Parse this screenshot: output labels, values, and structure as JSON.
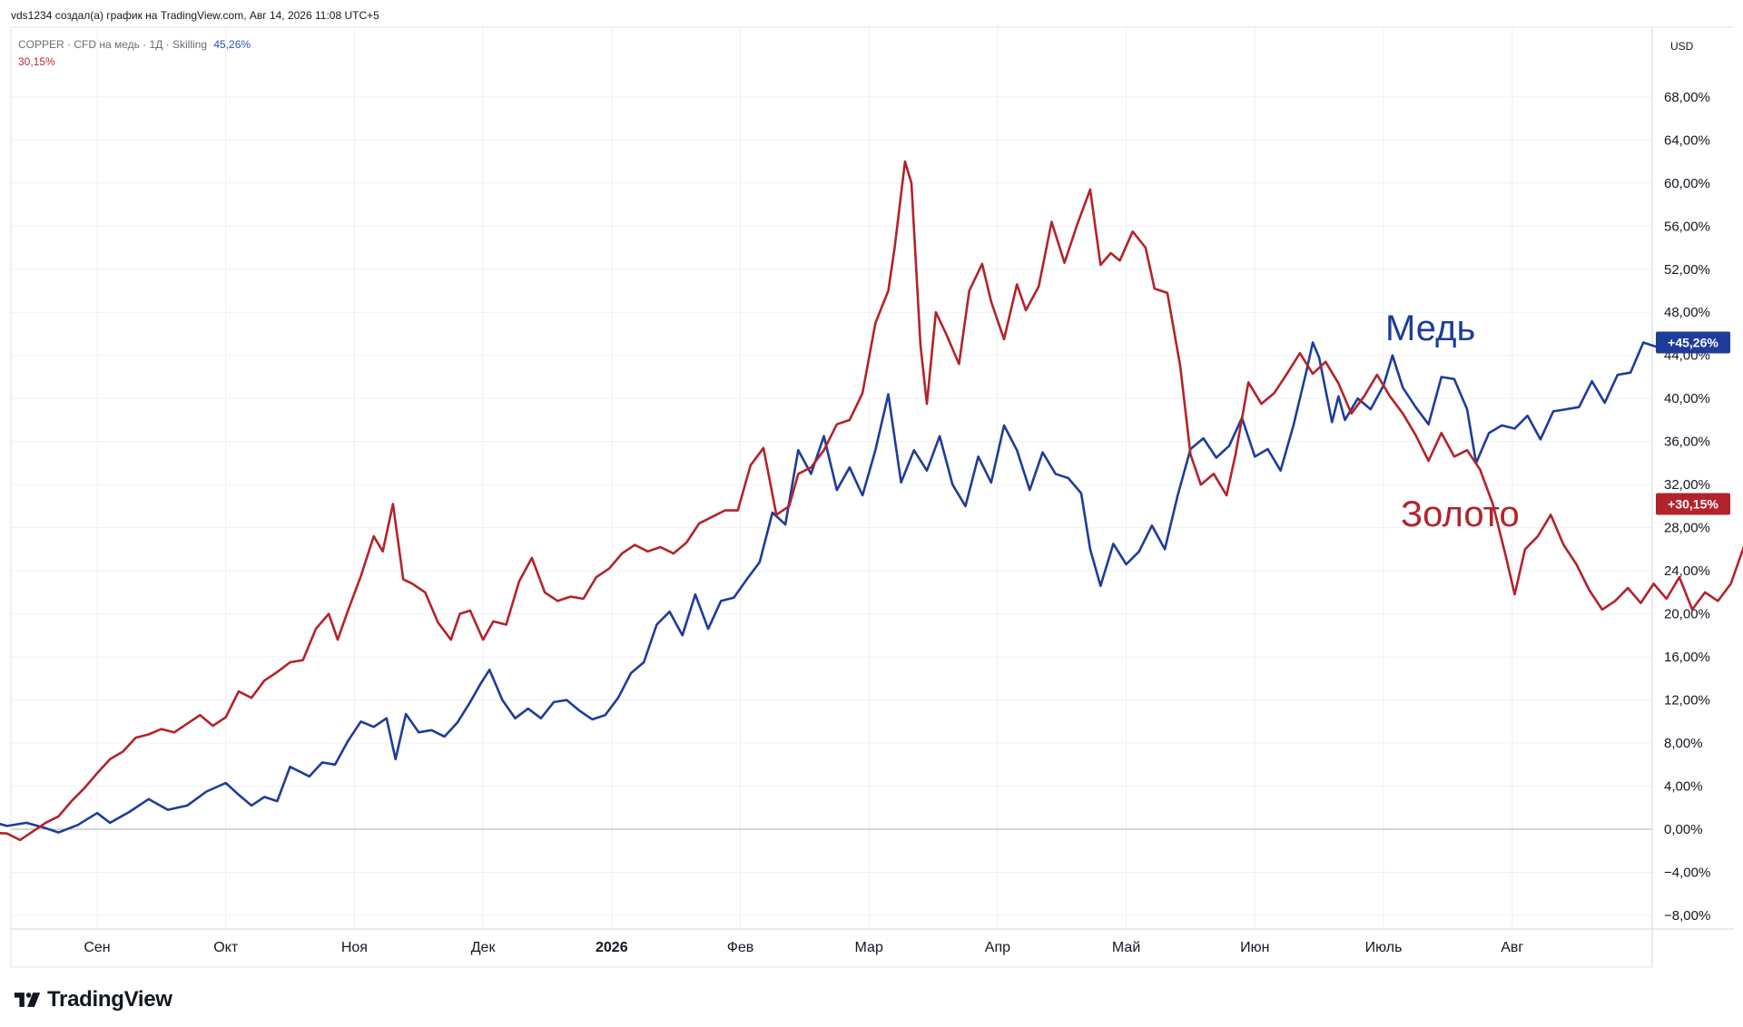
{
  "header": {
    "caption": "vds1234 создал(а) график на TradingView.com, Авг 14, 2026 11:08 UTC+5"
  },
  "legend": {
    "series_info": "COPPER · CFD на медь · 1Д · Skilling",
    "copper_pct": "45,26%",
    "gold_pct": "30,15%"
  },
  "currency": "USD",
  "brand": "TradingView",
  "labels": {
    "copper": "Медь",
    "gold": "Золото"
  },
  "colors": {
    "copper": "#1f3c9a",
    "gold": "#b3232b",
    "grid": "#eef0f4",
    "zero_line": "#a8acb6"
  },
  "chart_data": {
    "type": "line",
    "x_tick_labels": [
      "Сен",
      "Окт",
      "Ноя",
      "Дек",
      "2026",
      "Фев",
      "Мар",
      "Апр",
      "Май",
      "Июн",
      "Июль",
      "Авг"
    ],
    "y_ticks": [
      -8,
      -4,
      0,
      4,
      8,
      12,
      16,
      20,
      24,
      28,
      32,
      36,
      40,
      44,
      48,
      52,
      56,
      60,
      64,
      68
    ],
    "y_tick_labels": [
      "−8,00%",
      "−4,00%",
      "0,00%",
      "4,00%",
      "8,00%",
      "12,00%",
      "16,00%",
      "20,00%",
      "24,00%",
      "28,00%",
      "32,00%",
      "36,00%",
      "40,00%",
      "44,00%",
      "48,00%",
      "52,00%",
      "56,00%",
      "60,00%",
      "64,00%",
      "68,00%"
    ],
    "ylim": [
      -10,
      72
    ],
    "y_unit": "%",
    "grid": true,
    "series": [
      {
        "name": "Медь",
        "end_label": "+45,26%",
        "points": [
          [
            -1.0,
            0.0
          ],
          [
            -0.9,
            1.2
          ],
          [
            -0.85,
            0.8
          ],
          [
            -0.7,
            0.3
          ],
          [
            -0.55,
            0.6
          ],
          [
            -0.4,
            0.1
          ],
          [
            -0.3,
            -0.3
          ],
          [
            -0.15,
            0.4
          ],
          [
            0.0,
            1.5
          ],
          [
            0.1,
            0.6
          ],
          [
            0.25,
            1.6
          ],
          [
            0.4,
            2.8
          ],
          [
            0.55,
            1.8
          ],
          [
            0.7,
            2.2
          ],
          [
            0.85,
            3.5
          ],
          [
            1.0,
            4.3
          ],
          [
            1.1,
            3.2
          ],
          [
            1.2,
            2.2
          ],
          [
            1.3,
            3.0
          ],
          [
            1.4,
            2.6
          ],
          [
            1.5,
            5.8
          ],
          [
            1.65,
            4.9
          ],
          [
            1.75,
            6.2
          ],
          [
            1.85,
            6.0
          ],
          [
            1.95,
            8.2
          ],
          [
            2.05,
            10.0
          ],
          [
            2.15,
            9.5
          ],
          [
            2.25,
            10.3
          ],
          [
            2.32,
            6.5
          ],
          [
            2.4,
            10.7
          ],
          [
            2.5,
            9.0
          ],
          [
            2.6,
            9.2
          ],
          [
            2.7,
            8.6
          ],
          [
            2.8,
            9.9
          ],
          [
            2.9,
            11.8
          ],
          [
            2.98,
            13.5
          ],
          [
            3.05,
            14.8
          ],
          [
            3.15,
            12.0
          ],
          [
            3.25,
            10.3
          ],
          [
            3.35,
            11.2
          ],
          [
            3.45,
            10.3
          ],
          [
            3.55,
            11.8
          ],
          [
            3.65,
            12.0
          ],
          [
            3.75,
            11.0
          ],
          [
            3.85,
            10.2
          ],
          [
            3.95,
            10.6
          ],
          [
            4.05,
            12.2
          ],
          [
            4.15,
            14.5
          ],
          [
            4.25,
            15.5
          ],
          [
            4.35,
            19.0
          ],
          [
            4.45,
            20.2
          ],
          [
            4.55,
            18.0
          ],
          [
            4.65,
            21.8
          ],
          [
            4.75,
            18.6
          ],
          [
            4.85,
            21.2
          ],
          [
            4.95,
            21.5
          ],
          [
            5.05,
            23.2
          ],
          [
            5.15,
            24.8
          ],
          [
            5.25,
            29.4
          ],
          [
            5.35,
            28.3
          ],
          [
            5.45,
            35.2
          ],
          [
            5.55,
            33.0
          ],
          [
            5.65,
            36.5
          ],
          [
            5.75,
            31.5
          ],
          [
            5.85,
            33.6
          ],
          [
            5.95,
            31.0
          ],
          [
            6.05,
            35.2
          ],
          [
            6.15,
            40.4
          ],
          [
            6.25,
            32.2
          ],
          [
            6.35,
            35.2
          ],
          [
            6.45,
            33.3
          ],
          [
            6.55,
            36.5
          ],
          [
            6.65,
            32.0
          ],
          [
            6.75,
            30.0
          ],
          [
            6.85,
            34.6
          ],
          [
            6.95,
            32.2
          ],
          [
            7.05,
            37.5
          ],
          [
            7.15,
            35.2
          ],
          [
            7.25,
            31.5
          ],
          [
            7.35,
            35.0
          ],
          [
            7.45,
            33.0
          ],
          [
            7.55,
            32.6
          ],
          [
            7.65,
            31.2
          ],
          [
            7.72,
            26.0
          ],
          [
            7.8,
            22.6
          ],
          [
            7.9,
            26.5
          ],
          [
            8.0,
            24.6
          ],
          [
            8.1,
            25.8
          ],
          [
            8.2,
            28.2
          ],
          [
            8.3,
            26.0
          ],
          [
            8.4,
            31.0
          ],
          [
            8.5,
            35.3
          ],
          [
            8.6,
            36.3
          ],
          [
            8.7,
            34.5
          ],
          [
            8.8,
            35.6
          ],
          [
            8.9,
            38.2
          ],
          [
            9.0,
            34.6
          ],
          [
            9.1,
            35.3
          ],
          [
            9.2,
            33.3
          ],
          [
            9.3,
            37.5
          ],
          [
            9.4,
            42.5
          ],
          [
            9.45,
            45.2
          ],
          [
            9.5,
            43.8
          ],
          [
            9.6,
            37.8
          ],
          [
            9.65,
            40.2
          ],
          [
            9.7,
            38.0
          ],
          [
            9.8,
            40.0
          ],
          [
            9.9,
            39.0
          ],
          [
            10.0,
            41.2
          ],
          [
            10.07,
            44.0
          ],
          [
            10.15,
            41.0
          ],
          [
            10.25,
            39.2
          ],
          [
            10.35,
            37.6
          ],
          [
            10.45,
            42.0
          ],
          [
            10.55,
            41.8
          ],
          [
            10.65,
            39.0
          ],
          [
            10.72,
            34.0
          ],
          [
            10.82,
            36.8
          ],
          [
            10.92,
            37.5
          ],
          [
            11.02,
            37.2
          ],
          [
            11.12,
            38.4
          ],
          [
            11.22,
            36.2
          ],
          [
            11.32,
            38.8
          ],
          [
            11.42,
            39.0
          ],
          [
            11.52,
            39.2
          ],
          [
            11.62,
            41.6
          ],
          [
            11.72,
            39.6
          ],
          [
            11.82,
            42.2
          ],
          [
            11.92,
            42.4
          ],
          [
            12.02,
            45.2
          ],
          [
            12.12,
            44.8
          ],
          [
            12.22,
            45.2
          ]
        ]
      },
      {
        "name": "Золото",
        "end_label": "+30,15%",
        "points": [
          [
            -1.0,
            0.0
          ],
          [
            -0.85,
            -0.3
          ],
          [
            -0.7,
            -0.4
          ],
          [
            -0.6,
            -1.0
          ],
          [
            -0.5,
            -0.2
          ],
          [
            -0.4,
            0.6
          ],
          [
            -0.3,
            1.2
          ],
          [
            -0.2,
            2.6
          ],
          [
            -0.1,
            3.8
          ],
          [
            0.0,
            5.2
          ],
          [
            0.1,
            6.5
          ],
          [
            0.2,
            7.2
          ],
          [
            0.3,
            8.5
          ],
          [
            0.4,
            8.8
          ],
          [
            0.5,
            9.3
          ],
          [
            0.6,
            9.0
          ],
          [
            0.7,
            9.8
          ],
          [
            0.8,
            10.6
          ],
          [
            0.9,
            9.6
          ],
          [
            1.0,
            10.4
          ],
          [
            1.1,
            12.8
          ],
          [
            1.2,
            12.2
          ],
          [
            1.3,
            13.8
          ],
          [
            1.4,
            14.6
          ],
          [
            1.5,
            15.5
          ],
          [
            1.6,
            15.7
          ],
          [
            1.7,
            18.6
          ],
          [
            1.8,
            20.0
          ],
          [
            1.87,
            17.6
          ],
          [
            1.95,
            20.3
          ],
          [
            2.05,
            23.5
          ],
          [
            2.15,
            27.2
          ],
          [
            2.22,
            25.8
          ],
          [
            2.3,
            30.2
          ],
          [
            2.38,
            23.2
          ],
          [
            2.45,
            22.8
          ],
          [
            2.55,
            22.0
          ],
          [
            2.65,
            19.2
          ],
          [
            2.75,
            17.6
          ],
          [
            2.82,
            20.0
          ],
          [
            2.9,
            20.3
          ],
          [
            3.0,
            17.6
          ],
          [
            3.08,
            19.3
          ],
          [
            3.18,
            19.0
          ],
          [
            3.28,
            23.0
          ],
          [
            3.38,
            25.2
          ],
          [
            3.48,
            22.0
          ],
          [
            3.58,
            21.2
          ],
          [
            3.68,
            21.6
          ],
          [
            3.78,
            21.4
          ],
          [
            3.88,
            23.4
          ],
          [
            3.98,
            24.2
          ],
          [
            4.08,
            25.6
          ],
          [
            4.18,
            26.4
          ],
          [
            4.28,
            25.8
          ],
          [
            4.38,
            26.2
          ],
          [
            4.48,
            25.6
          ],
          [
            4.58,
            26.6
          ],
          [
            4.68,
            28.4
          ],
          [
            4.78,
            29.0
          ],
          [
            4.88,
            29.6
          ],
          [
            4.98,
            29.6
          ],
          [
            5.08,
            33.8
          ],
          [
            5.18,
            35.4
          ],
          [
            5.28,
            29.2
          ],
          [
            5.38,
            30.0
          ],
          [
            5.45,
            33.0
          ],
          [
            5.55,
            33.6
          ],
          [
            5.65,
            35.2
          ],
          [
            5.75,
            37.6
          ],
          [
            5.85,
            38.0
          ],
          [
            5.95,
            40.5
          ],
          [
            6.05,
            47.0
          ],
          [
            6.15,
            50.0
          ],
          [
            6.2,
            54.0
          ],
          [
            6.28,
            62.0
          ],
          [
            6.33,
            60.0
          ],
          [
            6.4,
            45.0
          ],
          [
            6.45,
            39.5
          ],
          [
            6.52,
            48.0
          ],
          [
            6.6,
            46.0
          ],
          [
            6.7,
            43.2
          ],
          [
            6.78,
            50.0
          ],
          [
            6.88,
            52.5
          ],
          [
            6.95,
            49.0
          ],
          [
            7.05,
            45.5
          ],
          [
            7.15,
            50.6
          ],
          [
            7.22,
            48.2
          ],
          [
            7.32,
            50.4
          ],
          [
            7.42,
            56.4
          ],
          [
            7.52,
            52.6
          ],
          [
            7.62,
            56.2
          ],
          [
            7.72,
            59.4
          ],
          [
            7.8,
            52.4
          ],
          [
            7.88,
            53.5
          ],
          [
            7.95,
            52.8
          ],
          [
            8.05,
            55.5
          ],
          [
            8.15,
            54.0
          ],
          [
            8.22,
            50.2
          ],
          [
            8.32,
            49.8
          ],
          [
            8.42,
            43.0
          ],
          [
            8.5,
            34.8
          ],
          [
            8.58,
            32.0
          ],
          [
            8.68,
            33.0
          ],
          [
            8.78,
            31.0
          ],
          [
            8.85,
            34.8
          ],
          [
            8.95,
            41.5
          ],
          [
            9.05,
            39.5
          ],
          [
            9.15,
            40.5
          ],
          [
            9.25,
            42.3
          ],
          [
            9.35,
            44.2
          ],
          [
            9.45,
            42.3
          ],
          [
            9.55,
            43.4
          ],
          [
            9.65,
            41.4
          ],
          [
            9.75,
            38.6
          ],
          [
            9.85,
            40.2
          ],
          [
            9.95,
            42.2
          ],
          [
            10.05,
            40.2
          ],
          [
            10.15,
            38.6
          ],
          [
            10.25,
            36.6
          ],
          [
            10.35,
            34.2
          ],
          [
            10.45,
            36.8
          ],
          [
            10.55,
            34.6
          ],
          [
            10.65,
            35.2
          ],
          [
            10.75,
            33.4
          ],
          [
            10.85,
            30.2
          ],
          [
            10.95,
            25.4
          ],
          [
            11.02,
            21.8
          ],
          [
            11.1,
            26.0
          ],
          [
            11.2,
            27.2
          ],
          [
            11.3,
            29.2
          ],
          [
            11.4,
            26.4
          ],
          [
            11.5,
            24.6
          ],
          [
            11.6,
            22.2
          ],
          [
            11.7,
            20.4
          ],
          [
            11.8,
            21.2
          ],
          [
            11.9,
            22.4
          ],
          [
            12.0,
            21.0
          ],
          [
            12.1,
            22.8
          ],
          [
            12.2,
            21.4
          ],
          [
            12.3,
            23.4
          ],
          [
            12.4,
            20.4
          ],
          [
            12.5,
            22.0
          ],
          [
            12.6,
            21.2
          ],
          [
            12.7,
            22.8
          ],
          [
            12.8,
            26.2
          ],
          [
            12.9,
            30.6
          ],
          [
            13.0,
            31.6
          ],
          [
            13.1,
            30.2
          ]
        ]
      }
    ]
  }
}
